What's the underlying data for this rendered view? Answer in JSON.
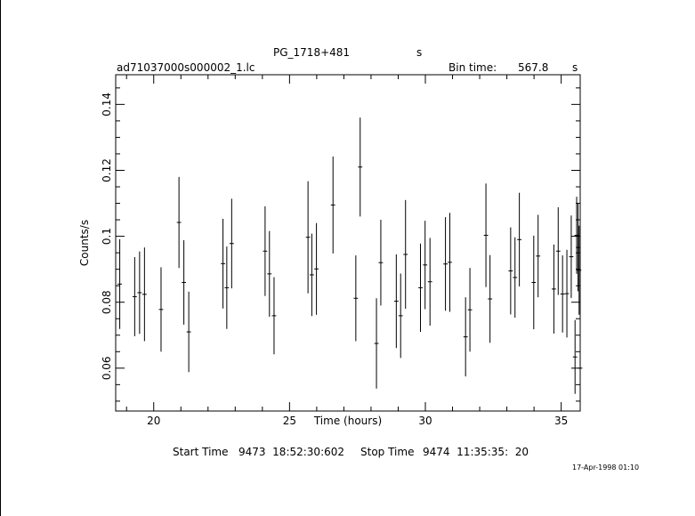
{
  "header": {
    "object_name": "PG_1718+481",
    "object_unit": "s",
    "file_name": "ad71037000s000002_1.lc",
    "bin_time_label": "Bin time:",
    "bin_time_value": "567.8",
    "bin_time_unit": "s"
  },
  "footer": {
    "start_label": "Start Time",
    "start_value": "9473  18:52:30:602",
    "stop_label": "Stop Time",
    "stop_value": "9474  11:35:35:  20",
    "timestamp": "17-Apr-1998 01:10"
  },
  "chart_data": {
    "type": "scatter",
    "title": "PG_1718+481",
    "xlabel": "Time (hours)",
    "ylabel": "Counts/s",
    "xlim": [
      18.6,
      35.7
    ],
    "ylim": [
      0.047,
      0.149
    ],
    "xticks": [
      20,
      25,
      30,
      35
    ],
    "yticks": [
      0.06,
      0.08,
      0.1,
      0.12,
      0.14
    ],
    "xtick_labels": [
      "20",
      "25",
      "30",
      "35"
    ],
    "ytick_labels": [
      "0.06",
      "0.08",
      "0.1",
      "0.12",
      "0.14"
    ],
    "grid": false,
    "series": [
      {
        "x_err": 0.079,
        "points": [
          {
            "x": 18.75,
            "y": 0.0855,
            "err": 0.0136
          },
          {
            "x": 19.3,
            "y": 0.0817,
            "err": 0.012
          },
          {
            "x": 19.48,
            "y": 0.0829,
            "err": 0.0125
          },
          {
            "x": 19.66,
            "y": 0.0824,
            "err": 0.0142
          },
          {
            "x": 20.27,
            "y": 0.0778,
            "err": 0.0128
          },
          {
            "x": 20.93,
            "y": 0.1042,
            "err": 0.0138
          },
          {
            "x": 21.11,
            "y": 0.086,
            "err": 0.0128
          },
          {
            "x": 21.29,
            "y": 0.071,
            "err": 0.0122
          },
          {
            "x": 22.55,
            "y": 0.0917,
            "err": 0.0136
          },
          {
            "x": 22.69,
            "y": 0.0844,
            "err": 0.0125
          },
          {
            "x": 22.87,
            "y": 0.0978,
            "err": 0.0136
          },
          {
            "x": 24.1,
            "y": 0.0955,
            "err": 0.0136
          },
          {
            "x": 24.26,
            "y": 0.0886,
            "err": 0.013
          },
          {
            "x": 24.43,
            "y": 0.0759,
            "err": 0.0117
          },
          {
            "x": 25.68,
            "y": 0.0997,
            "err": 0.017
          },
          {
            "x": 25.82,
            "y": 0.0883,
            "err": 0.0125
          },
          {
            "x": 25.99,
            "y": 0.0901,
            "err": 0.0139
          },
          {
            "x": 26.6,
            "y": 0.1095,
            "err": 0.0147
          },
          {
            "x": 27.44,
            "y": 0.0812,
            "err": 0.013
          },
          {
            "x": 27.6,
            "y": 0.121,
            "err": 0.015
          },
          {
            "x": 28.2,
            "y": 0.0675,
            "err": 0.0137
          },
          {
            "x": 28.36,
            "y": 0.092,
            "err": 0.013
          },
          {
            "x": 28.93,
            "y": 0.0803,
            "err": 0.0142
          },
          {
            "x": 29.09,
            "y": 0.0759,
            "err": 0.0128
          },
          {
            "x": 29.27,
            "y": 0.0945,
            "err": 0.0165
          },
          {
            "x": 29.82,
            "y": 0.0844,
            "err": 0.0134
          },
          {
            "x": 29.99,
            "y": 0.0913,
            "err": 0.0134
          },
          {
            "x": 30.17,
            "y": 0.0862,
            "err": 0.0133
          },
          {
            "x": 30.74,
            "y": 0.0916,
            "err": 0.0142
          },
          {
            "x": 30.9,
            "y": 0.0921,
            "err": 0.015
          },
          {
            "x": 31.48,
            "y": 0.0695,
            "err": 0.012
          },
          {
            "x": 31.64,
            "y": 0.0777,
            "err": 0.0127
          },
          {
            "x": 32.23,
            "y": 0.1003,
            "err": 0.0157
          },
          {
            "x": 32.38,
            "y": 0.081,
            "err": 0.0133
          },
          {
            "x": 33.14,
            "y": 0.0895,
            "err": 0.0132
          },
          {
            "x": 33.3,
            "y": 0.0875,
            "err": 0.0122
          },
          {
            "x": 33.46,
            "y": 0.099,
            "err": 0.0142
          },
          {
            "x": 33.99,
            "y": 0.086,
            "err": 0.0142
          },
          {
            "x": 34.15,
            "y": 0.094,
            "err": 0.0125
          },
          {
            "x": 34.73,
            "y": 0.084,
            "err": 0.0135
          },
          {
            "x": 34.89,
            "y": 0.0955,
            "err": 0.0133
          },
          {
            "x": 35.05,
            "y": 0.0825,
            "err": 0.0117
          },
          {
            "x": 35.21,
            "y": 0.0826,
            "err": 0.0133
          },
          {
            "x": 35.37,
            "y": 0.0938,
            "err": 0.0125
          },
          {
            "x": 35.51,
            "y": 0.0634,
            "err": 0.0112
          },
          {
            "x": 35.57,
            "y": 0.1003,
            "err": 0.0117
          },
          {
            "x": 35.62,
            "y": 0.0966,
            "err": 0.0133
          },
          {
            "x": 35.66,
            "y": 0.0897,
            "err": 0.0135
          },
          {
            "x": 35.7,
            "y": 0.06,
            "err": 0.0117
          }
        ]
      }
    ]
  }
}
